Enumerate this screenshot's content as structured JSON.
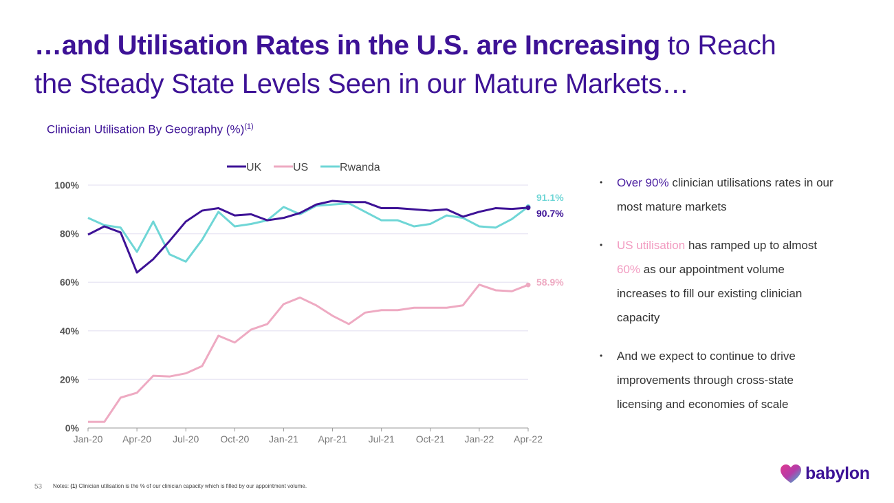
{
  "title": {
    "bold": "…and Utilisation Rates in the U.S. are Increasing",
    "regular_line1": " to Reach",
    "regular_line2": "the Steady State Levels Seen in our Mature Markets…"
  },
  "chart_title": "Clinician Utilisation By Geography (%)",
  "chart_title_note": "(1)",
  "chart_data": {
    "type": "line",
    "title": "Clinician Utilisation By Geography (%)",
    "x": [
      "Jan-20",
      "Feb-20",
      "Mar-20",
      "Apr-20",
      "May-20",
      "Jun-20",
      "Jul-20",
      "Aug-20",
      "Sep-20",
      "Oct-20",
      "Nov-20",
      "Dec-20",
      "Jan-21",
      "Feb-21",
      "Mar-21",
      "Apr-21",
      "May-21",
      "Jun-21",
      "Jul-21",
      "Aug-21",
      "Sep-21",
      "Oct-21",
      "Nov-21",
      "Dec-21",
      "Jan-22",
      "Feb-22",
      "Mar-22",
      "Apr-22"
    ],
    "x_tick_labels": [
      "Jan-20",
      "Apr-20",
      "Jul-20",
      "Oct-20",
      "Jan-21",
      "Apr-21",
      "Jul-21",
      "Oct-21",
      "Jan-22",
      "Apr-22"
    ],
    "y_tick_labels": [
      "0%",
      "20%",
      "40%",
      "60%",
      "80%",
      "100%"
    ],
    "ylim": [
      0,
      100
    ],
    "grid": true,
    "legend_placement": "top",
    "series": [
      {
        "name": "UK",
        "color": "#3d1296",
        "end_label": "90.7%",
        "values": [
          79.6,
          83,
          80.5,
          64,
          69.5,
          77,
          85,
          89.5,
          90.5,
          87.5,
          88,
          85.5,
          86.5,
          88.5,
          92,
          93.5,
          93,
          93,
          90.5,
          90.5,
          90,
          89.5,
          90,
          87,
          89,
          90.5,
          90.2,
          90.7
        ]
      },
      {
        "name": "US",
        "color": "#eeaac2",
        "end_label": "58.9%",
        "values": [
          2.5,
          2.5,
          12.5,
          14.5,
          21.5,
          21.2,
          22.5,
          25.5,
          38,
          35.2,
          40.5,
          42.8,
          51,
          53.7,
          50.5,
          46.2,
          42.8,
          47.5,
          48.5,
          48.5,
          49.5,
          49.5,
          49.5,
          50.5,
          59,
          56.7,
          56.3,
          58.9
        ]
      },
      {
        "name": "Rwanda",
        "color": "#6fd6d6",
        "end_label": "91.1%",
        "values": [
          86.5,
          83.5,
          82.5,
          72.5,
          85,
          71.5,
          68.5,
          77.5,
          89,
          83,
          84,
          85.5,
          91,
          88,
          91.5,
          92,
          92.5,
          89,
          85.5,
          85.5,
          83,
          84,
          87.5,
          86.5,
          83,
          82.5,
          86,
          91.1
        ]
      }
    ]
  },
  "bullets": [
    {
      "hl": "Over 90%",
      "rest": " clinician utilisations rates in our most mature markets"
    },
    {
      "hl": "US utilisation",
      "mid": " has ramped up to almost ",
      "hl2": "60%",
      "rest": " as our appointment volume increases to fill our existing clinician capacity"
    },
    {
      "rest": "And we expect to continue to drive improvements through cross-state licensing and economies of scale"
    }
  ],
  "bullet_symbol": "•",
  "page_number": "53",
  "notes": {
    "label": "Notes: ",
    "ref": "(1)",
    "text": " Clinician utilisation is the % of our clinician capacity which is filled by our appointment volume."
  },
  "logo": {
    "text": "babylon",
    "icon": "heart-icon"
  }
}
